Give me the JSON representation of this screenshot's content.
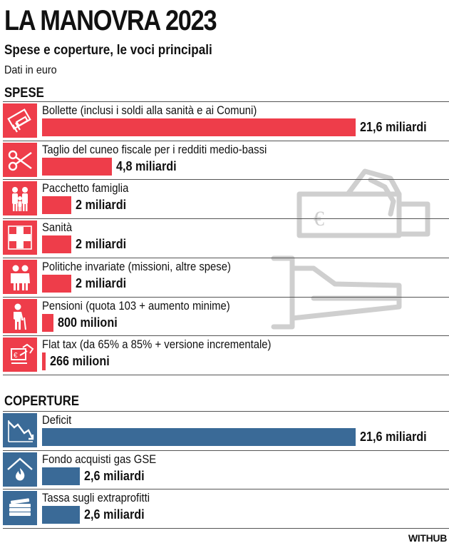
{
  "title": "LA MANOVRA 2023",
  "subtitle": "Spese e coperture, le voci principali",
  "unit": "Dati in euro",
  "colors": {
    "spese": "#ee3d4a",
    "coperture": "#3a6a97",
    "watermark": "#cfcfcf"
  },
  "chart_data": [
    {
      "type": "bar",
      "section": "SPESE",
      "categories": [
        "Bollette (inclusi i soldi alla sanità e ai Comuni)",
        "Taglio del cuneo fiscale per i redditi medio-bassi",
        "Pacchetto famiglia",
        "Sanità",
        "Politiche invariate (missioni, altre spese)",
        "Pensioni (quota 103 + aumento minime)",
        "Flat tax (da 65% a 85% + versione incrementale)"
      ],
      "values": [
        21.6,
        4.8,
        2,
        2,
        2,
        0.8,
        0.266
      ],
      "value_labels": [
        "21,6 miliardi",
        "4,8 miliardi",
        "2 miliardi",
        "2 miliardi",
        "2 miliardi",
        "800 milioni",
        "266 milioni"
      ],
      "icons": [
        "bill-icon",
        "scissors-icon",
        "family-icon",
        "medical-cross-icon",
        "elderly-couple-icon",
        "elderly-person-icon",
        "flat-tax-icon"
      ]
    },
    {
      "type": "bar",
      "section": "COPERTURE",
      "categories": [
        "Deficit",
        "Fondo acquisti gas GSE",
        "Tassa sugli extraprofitti"
      ],
      "values": [
        21.6,
        2.6,
        2.6
      ],
      "value_labels": [
        "21,6 miliardi",
        "2,6 miliardi",
        "2,6 miliardi"
      ],
      "icons": [
        "deficit-chart-icon",
        "gas-flame-icon",
        "money-stack-icon"
      ]
    }
  ],
  "logo": "WITHUB"
}
